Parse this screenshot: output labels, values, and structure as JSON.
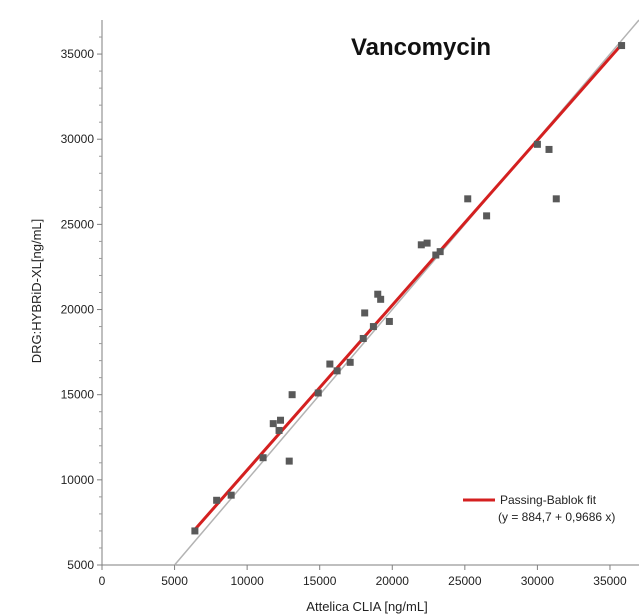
{
  "chart_data": {
    "type": "scatter",
    "title": "Vancomycin",
    "xlabel": "Attelica CLIA [ng/mL]",
    "ylabel": "DRG:HYBRiD-XL[ng/mL]",
    "xlim": [
      0,
      37000
    ],
    "ylim": [
      5000,
      37000
    ],
    "x_ticks": [
      0,
      5000,
      10000,
      15000,
      20000,
      25000,
      30000,
      35000
    ],
    "y_ticks": [
      5000,
      10000,
      15000,
      20000,
      25000,
      30000,
      35000
    ],
    "grid": false,
    "legend_position": "bottom-right",
    "points": {
      "color": "#595959",
      "x": [
        6400,
        7900,
        8900,
        11100,
        11800,
        12200,
        12300,
        12900,
        13100,
        14900,
        15700,
        16200,
        17100,
        18000,
        18100,
        18700,
        19000,
        19200,
        19800,
        22000,
        22400,
        23000,
        23300,
        25200,
        26500,
        30000,
        30800,
        31300,
        35800
      ],
      "y": [
        7000,
        8800,
        9100,
        11300,
        13300,
        12900,
        13500,
        11100,
        15000,
        15100,
        16800,
        16400,
        16900,
        18300,
        19800,
        19000,
        20900,
        20600,
        19300,
        23800,
        23900,
        23200,
        23400,
        26500,
        25500,
        29700,
        29400,
        26500,
        35500
      ]
    },
    "series": [
      {
        "name": "Passing-Bablok fit",
        "equation": "(y = 884,7 + 0,9686 x)",
        "color": "#d42020",
        "intercept": 884.7,
        "slope": 0.9686,
        "x_range": [
          6400,
          35800
        ]
      }
    ],
    "identity_line": {
      "color": "#b3b3b3",
      "x_range": [
        5000,
        37000
      ]
    }
  }
}
